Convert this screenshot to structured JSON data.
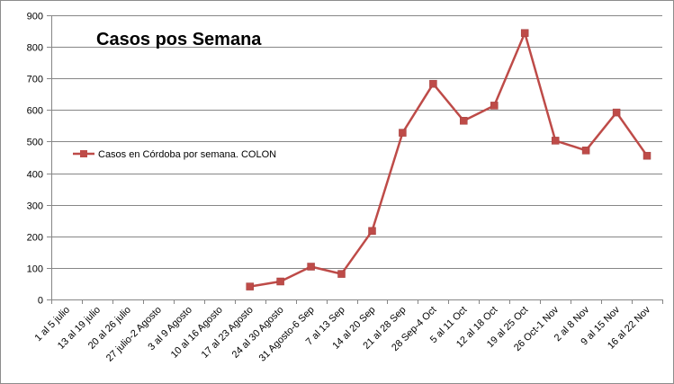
{
  "chart_data": {
    "type": "line",
    "title": "Casos pos Semana",
    "xlabel": "",
    "ylabel": "",
    "ylim": [
      0,
      900
    ],
    "yticks": [
      0,
      100,
      200,
      300,
      400,
      500,
      600,
      700,
      800,
      900
    ],
    "grid": true,
    "legend_position": "left-middle",
    "categories": [
      "1 al 5 julio",
      "13 al 19 julio",
      "20 al 26 julio",
      "27 julio-2 Agosto",
      "3 al 9 Agosto",
      "10 al 16 Agosto",
      "17 al 23 Agosto",
      "24 al 30 Agosto",
      "31 Agosto-6 Sep",
      "7 al 13 Sep",
      "14 al 20 Sep",
      "21 al 28 Sep",
      "28 Sep-4 Oct",
      "5 al 11 Oct",
      "12 al 18 Oct",
      "19 al 25 Oct",
      "26 Oct-1 Nov",
      "2 al 8 Nov",
      "9 al 15 Nov",
      "16 al 22 Nov"
    ],
    "series": [
      {
        "name": "Casos en Córdoba por semana. COLON",
        "color": "#be4b48",
        "values": [
          null,
          null,
          null,
          null,
          null,
          null,
          41,
          57,
          104,
          81,
          217,
          528,
          683,
          566,
          614,
          844,
          503,
          472,
          592,
          455
        ]
      }
    ]
  }
}
